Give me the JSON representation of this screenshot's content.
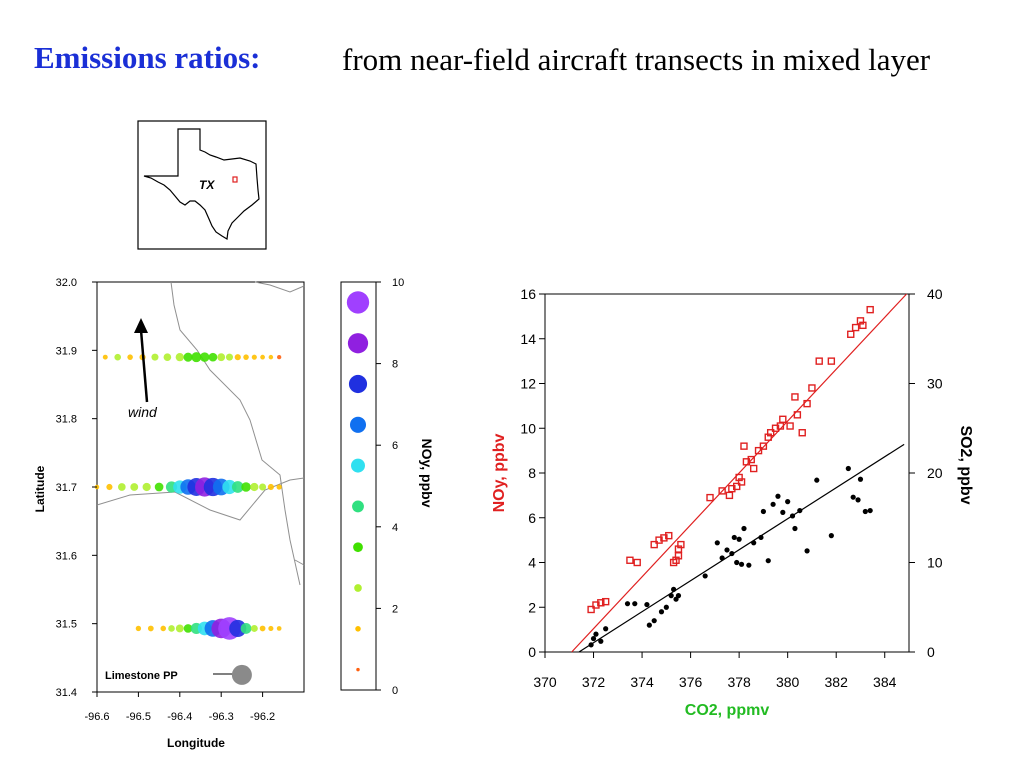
{
  "slide": {
    "title": "Emissions ratios:",
    "subtitle": "from near-field aircraft transects in mixed layer",
    "title_color": "#1a2fd6"
  },
  "inset_map": {
    "state_label": "TX",
    "site_marker_color": "#e02020"
  },
  "chart_data": [
    {
      "type": "scatter",
      "xlabel": "Longitude",
      "ylabel": "Latitude",
      "xlim": [
        -96.6,
        -96.1
      ],
      "ylim": [
        31.4,
        32.0
      ],
      "xticks": [
        "-96.6",
        "-96.5",
        "-96.4",
        "-96.3",
        "-96.2"
      ],
      "yticks": [
        "31.4",
        "31.5",
        "31.6",
        "31.7",
        "31.8",
        "31.9",
        "32.0"
      ],
      "annotations": {
        "wind": "wind",
        "plant": "Limestone PP"
      },
      "plant_location": {
        "lon": -96.25,
        "lat": 31.425
      },
      "series": [
        {
          "lat": 31.89,
          "lon": [
            -96.58,
            -96.55,
            -96.52,
            -96.49,
            -96.46,
            -96.43,
            -96.4,
            -96.38,
            -96.36,
            -96.34,
            -96.32,
            -96.3,
            -96.28,
            -96.26,
            -96.24,
            -96.22,
            -96.2,
            -96.18,
            -96.16
          ],
          "noy": [
            1.2,
            2.0,
            1.5,
            1.8,
            2.2,
            2.5,
            2.8,
            3.2,
            3.6,
            3.4,
            3.0,
            2.6,
            2.2,
            1.8,
            1.5,
            1.3,
            1.1,
            1.0,
            0.9
          ]
        },
        {
          "lat": 31.7,
          "lon": [
            -96.6,
            -96.57,
            -96.54,
            -96.51,
            -96.48,
            -96.45,
            -96.42,
            -96.4,
            -96.38,
            -96.36,
            -96.34,
            -96.32,
            -96.3,
            -96.28,
            -96.26,
            -96.24,
            -96.22,
            -96.2,
            -96.18,
            -96.16
          ],
          "noy": [
            1.0,
            1.8,
            2.5,
            2.6,
            2.8,
            3.0,
            4.2,
            5.2,
            6.2,
            7.4,
            8.0,
            7.6,
            6.8,
            5.6,
            4.4,
            3.4,
            2.8,
            2.2,
            1.8,
            1.4
          ]
        },
        {
          "lat": 31.493,
          "lon": [
            -96.5,
            -96.47,
            -96.44,
            -96.42,
            -96.4,
            -96.38,
            -96.36,
            -96.34,
            -96.32,
            -96.3,
            -96.28,
            -96.26,
            -96.24,
            -96.22,
            -96.2,
            -96.18,
            -96.16
          ],
          "noy": [
            1.4,
            1.6,
            1.5,
            2.0,
            2.6,
            3.0,
            4.2,
            5.4,
            6.8,
            8.2,
            9.6,
            7.0,
            4.0,
            2.2,
            1.6,
            1.3,
            1.1
          ]
        }
      ]
    },
    {
      "type": "scatter",
      "xlabel": "CO2, ppmv",
      "ylabel": "NOy, ppbv",
      "y2label": "SO2, ppbv",
      "xlim": [
        370,
        385
      ],
      "ylim": [
        0,
        16
      ],
      "y2lim": [
        0,
        40
      ],
      "xticks": [
        "370",
        "372",
        "374",
        "376",
        "378",
        "380",
        "382",
        "384"
      ],
      "yticks": [
        "0",
        "2",
        "4",
        "6",
        "8",
        "10",
        "12",
        "14",
        "16"
      ],
      "y2ticks": [
        "0",
        "10",
        "20",
        "30",
        "40"
      ],
      "colors": {
        "noy": "#e02020",
        "so2": "#000000",
        "xlabel": "#22bb22"
      },
      "series": [
        {
          "name": "NOy",
          "marker": "open-square",
          "x": [
            371.9,
            372.1,
            372.3,
            372.5,
            373.5,
            373.8,
            374.5,
            374.7,
            374.9,
            375.1,
            375.3,
            375.4,
            375.5,
            375.5,
            375.6,
            376.8,
            377.3,
            377.6,
            377.7,
            377.9,
            378.0,
            378.1,
            378.2,
            378.3,
            378.5,
            378.6,
            378.8,
            379.0,
            379.2,
            379.3,
            379.5,
            379.7,
            379.8,
            380.1,
            380.3,
            380.4,
            380.6,
            380.8,
            381.0,
            381.3,
            381.8,
            382.6,
            382.8,
            383.0,
            383.1,
            383.4
          ],
          "y": [
            1.9,
            2.1,
            2.2,
            2.25,
            4.1,
            4.0,
            4.8,
            5.0,
            5.1,
            5.2,
            4.0,
            4.1,
            4.3,
            4.6,
            4.8,
            6.9,
            7.2,
            7.0,
            7.3,
            7.4,
            7.8,
            7.6,
            9.2,
            8.5,
            8.6,
            8.2,
            9.0,
            9.2,
            9.6,
            9.8,
            10.0,
            10.1,
            10.4,
            10.1,
            11.4,
            10.6,
            9.8,
            11.1,
            11.8,
            13.0,
            13.0,
            14.2,
            14.5,
            14.8,
            14.6,
            15.3
          ]
        },
        {
          "name": "SO2",
          "marker": "dot",
          "x": [
            371.9,
            372.0,
            372.1,
            372.3,
            372.5,
            373.4,
            373.7,
            374.2,
            374.3,
            374.5,
            374.8,
            375.0,
            375.2,
            375.3,
            375.4,
            375.5,
            376.6,
            377.1,
            377.3,
            377.5,
            377.7,
            377.8,
            377.9,
            378.0,
            378.1,
            378.2,
            378.4,
            378.6,
            378.9,
            379.0,
            379.2,
            379.4,
            379.6,
            379.8,
            380.0,
            380.2,
            380.3,
            380.5,
            380.8,
            381.2,
            381.8,
            382.5,
            382.7,
            382.9,
            383.0,
            383.2,
            383.4
          ],
          "y": [
            0.8,
            1.5,
            2.0,
            1.2,
            2.6,
            5.4,
            5.4,
            5.3,
            3.0,
            3.5,
            4.5,
            5.0,
            6.3,
            7.0,
            5.9,
            6.3,
            8.5,
            12.2,
            10.5,
            11.4,
            11.0,
            12.8,
            10.0,
            12.6,
            9.8,
            13.8,
            9.7,
            12.2,
            12.8,
            15.7,
            10.2,
            16.5,
            17.4,
            15.6,
            16.8,
            15.2,
            13.8,
            15.8,
            11.3,
            19.2,
            13.0,
            20.5,
            17.3,
            17.0,
            19.3,
            15.7,
            15.8
          ]
        }
      ],
      "fit_lines": [
        {
          "name": "NOy",
          "x": [
            371.1,
            384.9
          ],
          "y": [
            0.0,
            16.0
          ]
        },
        {
          "name": "SO2",
          "x": [
            371.4,
            384.8
          ],
          "y": [
            0.0,
            23.2
          ]
        }
      ]
    }
  ],
  "colorbar": {
    "label": "NOy, ppbv",
    "ticks": [
      "0",
      "2",
      "4",
      "6",
      "8",
      "10"
    ],
    "range": [
      0,
      10
    ],
    "levels": [
      0.5,
      1.5,
      2.5,
      3.5,
      4.5,
      5.5,
      6.5,
      7.5,
      8.5,
      9.5
    ],
    "colors": [
      "#ff6010",
      "#ffc000",
      "#b0f030",
      "#40e000",
      "#30e080",
      "#30e0f0",
      "#1070f0",
      "#2030e0",
      "#9020e0",
      "#a040ff"
    ]
  }
}
